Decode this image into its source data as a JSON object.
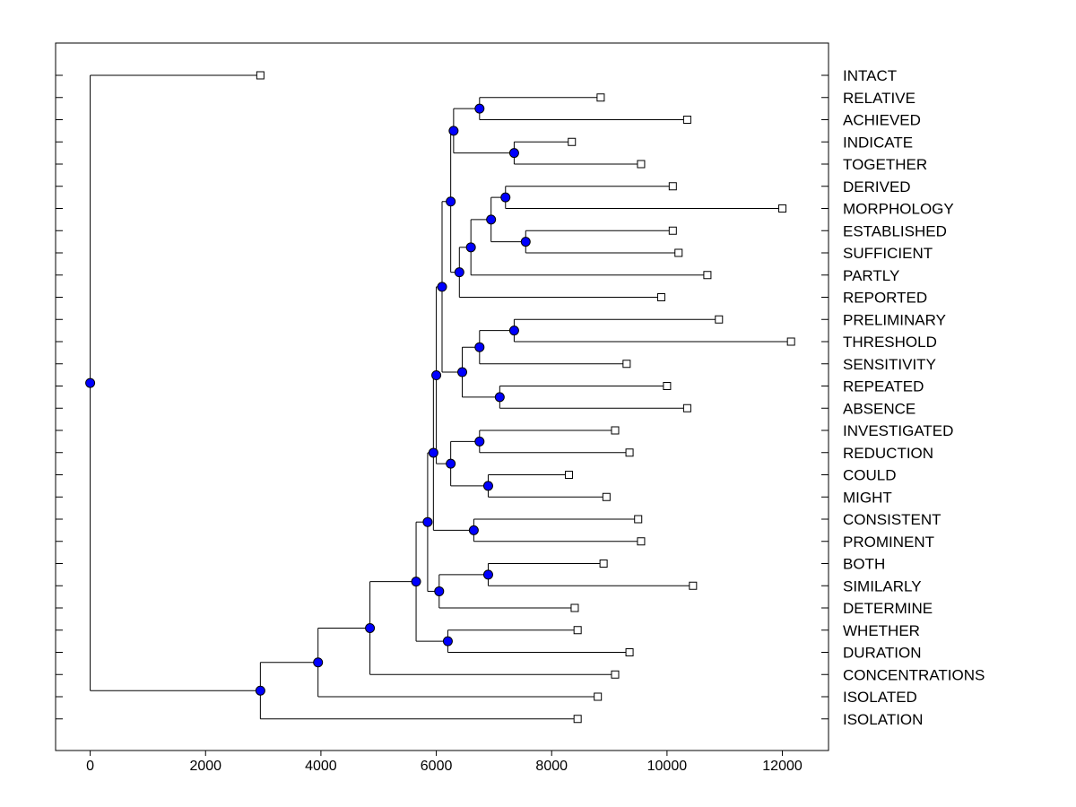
{
  "chart_data": {
    "type": "dendrogram",
    "title": "",
    "xlabel": "",
    "ylabel": "",
    "xlim": [
      -600,
      12800
    ],
    "x_ticks": [
      0,
      2000,
      4000,
      6000,
      8000,
      10000,
      12000
    ],
    "x_tick_labels": [
      "0",
      "2000",
      "4000",
      "6000",
      "8000",
      "10000",
      "12000"
    ],
    "leaf_labels": [
      "INTACT",
      "RELATIVE",
      "ACHIEVED",
      "INDICATE",
      "TOGETHER",
      "DERIVED",
      "MORPHOLOGY",
      "ESTABLISHED",
      "SUFFICIENT",
      "PARTLY",
      "REPORTED",
      "PRELIMINARY",
      "THRESHOLD",
      "SENSITIVITY",
      "REPEATED",
      "ABSENCE",
      "INVESTIGATED",
      "REDUCTION",
      "COULD",
      "MIGHT",
      "CONSISTENT",
      "PROMINENT",
      "BOTH",
      "SIMILARLY",
      "DETERMINE",
      "WHETHER",
      "DURATION",
      "CONCENTRATIONS",
      "ISOLATED",
      "ISOLATION"
    ],
    "leaf_values": [
      2950,
      8850,
      10350,
      8350,
      9550,
      10100,
      12000,
      10100,
      10200,
      10700,
      9900,
      10900,
      12150,
      9300,
      10000,
      10350,
      9100,
      9350,
      8300,
      8950,
      9500,
      9550,
      8900,
      10450,
      8400,
      8450,
      9350,
      9100,
      8800,
      8450
    ],
    "merges": [
      {
        "id": "n1",
        "children": [
          "leaf:1",
          "leaf:2"
        ],
        "height": 6750
      },
      {
        "id": "n2",
        "children": [
          "leaf:3",
          "leaf:4"
        ],
        "height": 7350
      },
      {
        "id": "n3",
        "children": [
          "n1",
          "n2"
        ],
        "height": 6300
      },
      {
        "id": "n4",
        "children": [
          "leaf:5",
          "leaf:6"
        ],
        "height": 7200
      },
      {
        "id": "n5",
        "children": [
          "leaf:7",
          "leaf:8"
        ],
        "height": 7550
      },
      {
        "id": "n6",
        "children": [
          "n4",
          "n5"
        ],
        "height": 6950
      },
      {
        "id": "n7",
        "children": [
          "n6",
          "leaf:9"
        ],
        "height": 6600
      },
      {
        "id": "n8",
        "children": [
          "n7",
          "leaf:10"
        ],
        "height": 6400
      },
      {
        "id": "n9",
        "children": [
          "n3",
          "n8"
        ],
        "height": 6250
      },
      {
        "id": "n10",
        "children": [
          "leaf:11",
          "leaf:12"
        ],
        "height": 7350
      },
      {
        "id": "n11",
        "children": [
          "n10",
          "leaf:13"
        ],
        "height": 6750
      },
      {
        "id": "n12",
        "children": [
          "leaf:14",
          "leaf:15"
        ],
        "height": 7100
      },
      {
        "id": "n13",
        "children": [
          "n11",
          "n12"
        ],
        "height": 6450
      },
      {
        "id": "n14",
        "children": [
          "n9",
          "n13"
        ],
        "height": 6100
      },
      {
        "id": "n15",
        "children": [
          "leaf:16",
          "leaf:17"
        ],
        "height": 6750
      },
      {
        "id": "n16",
        "children": [
          "leaf:18",
          "leaf:19"
        ],
        "height": 6900
      },
      {
        "id": "n17",
        "children": [
          "n15",
          "n16"
        ],
        "height": 6250
      },
      {
        "id": "n18",
        "children": [
          "n14",
          "n17"
        ],
        "height": 6000
      },
      {
        "id": "n19",
        "children": [
          "leaf:20",
          "leaf:21"
        ],
        "height": 6650
      },
      {
        "id": "n20",
        "children": [
          "n18",
          "n19"
        ],
        "height": 5950
      },
      {
        "id": "n21",
        "children": [
          "leaf:22",
          "leaf:23"
        ],
        "height": 6900
      },
      {
        "id": "n22",
        "children": [
          "n21",
          "leaf:24"
        ],
        "height": 6050
      },
      {
        "id": "n23",
        "children": [
          "n20",
          "n22"
        ],
        "height": 5850
      },
      {
        "id": "n24",
        "children": [
          "leaf:25",
          "leaf:26"
        ],
        "height": 6200
      },
      {
        "id": "n25",
        "children": [
          "n23",
          "n24"
        ],
        "height": 5650
      },
      {
        "id": "n26",
        "children": [
          "n25",
          "leaf:27"
        ],
        "height": 4850
      },
      {
        "id": "n27",
        "children": [
          "n26",
          "leaf:28"
        ],
        "height": 3950
      },
      {
        "id": "n28",
        "children": [
          "n27",
          "leaf:29"
        ],
        "height": 2950
      },
      {
        "id": "root",
        "children": [
          "leaf:0",
          "n28"
        ],
        "height": 0
      }
    ],
    "colors": {
      "node_fill": "#0000ff",
      "line": "#000000",
      "leaf_marker_fill": "#ffffff"
    }
  }
}
